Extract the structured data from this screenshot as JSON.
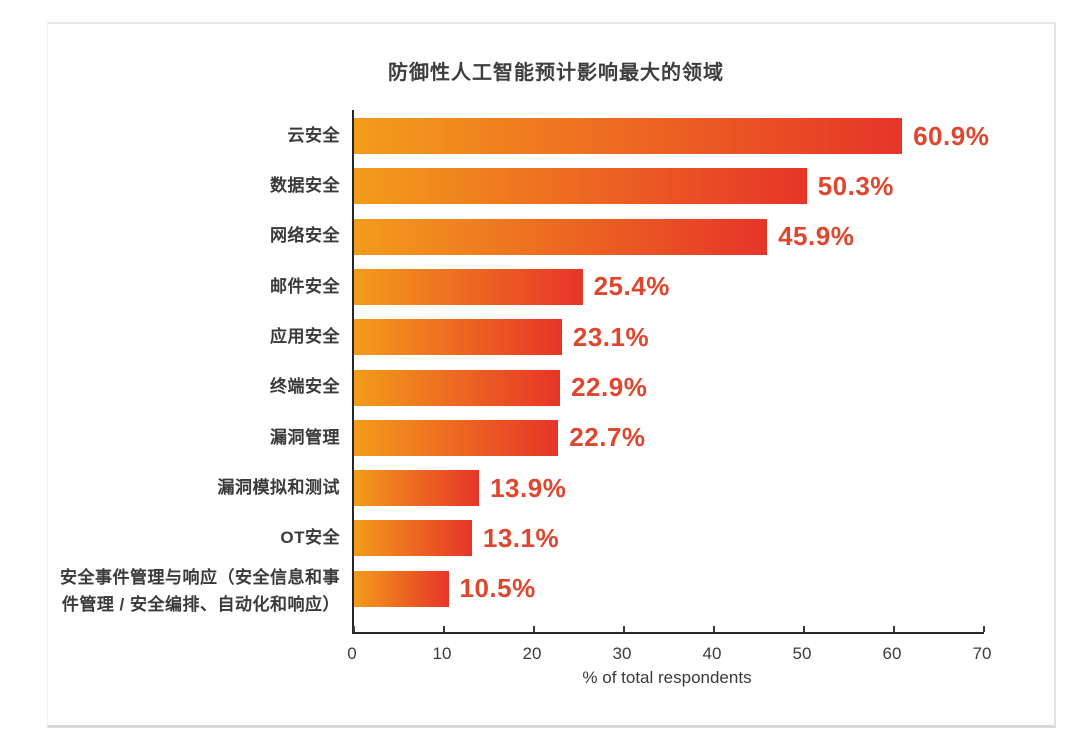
{
  "page": {
    "title": "防御性人工智能预计影响最大的领域",
    "xlabel": "% of total respondents"
  },
  "chart_data": {
    "type": "bar",
    "orientation": "horizontal",
    "title": "防御性人工智能预计影响最大的领域",
    "xlabel": "% of total respondents",
    "xlim": [
      0,
      70
    ],
    "xticks": [
      0,
      10,
      20,
      30,
      40,
      50,
      60,
      70
    ],
    "grid": false,
    "legend": false,
    "categories": [
      "云安全",
      "数据安全",
      "网络安全",
      "邮件安全",
      "应用安全",
      "终端安全",
      "漏洞管理",
      "漏洞模拟和测试",
      "OT安全",
      "安全事件管理与响应（安全信息和事\n件管理 / 安全编排、自动化和响应）"
    ],
    "values": [
      60.9,
      50.3,
      45.9,
      25.4,
      23.1,
      22.9,
      22.7,
      13.9,
      13.1,
      10.5
    ],
    "value_labels": [
      "60.9%",
      "50.3%",
      "45.9%",
      "25.4%",
      "23.1%",
      "22.9%",
      "22.7%",
      "13.9%",
      "13.1%",
      "10.5%"
    ],
    "colors": {
      "bar_gradient_start": "#F39C1B",
      "bar_gradient_end": "#E63528",
      "value_label": "#E0462D",
      "axis": "#262626",
      "text": "#3a3a3a"
    }
  }
}
